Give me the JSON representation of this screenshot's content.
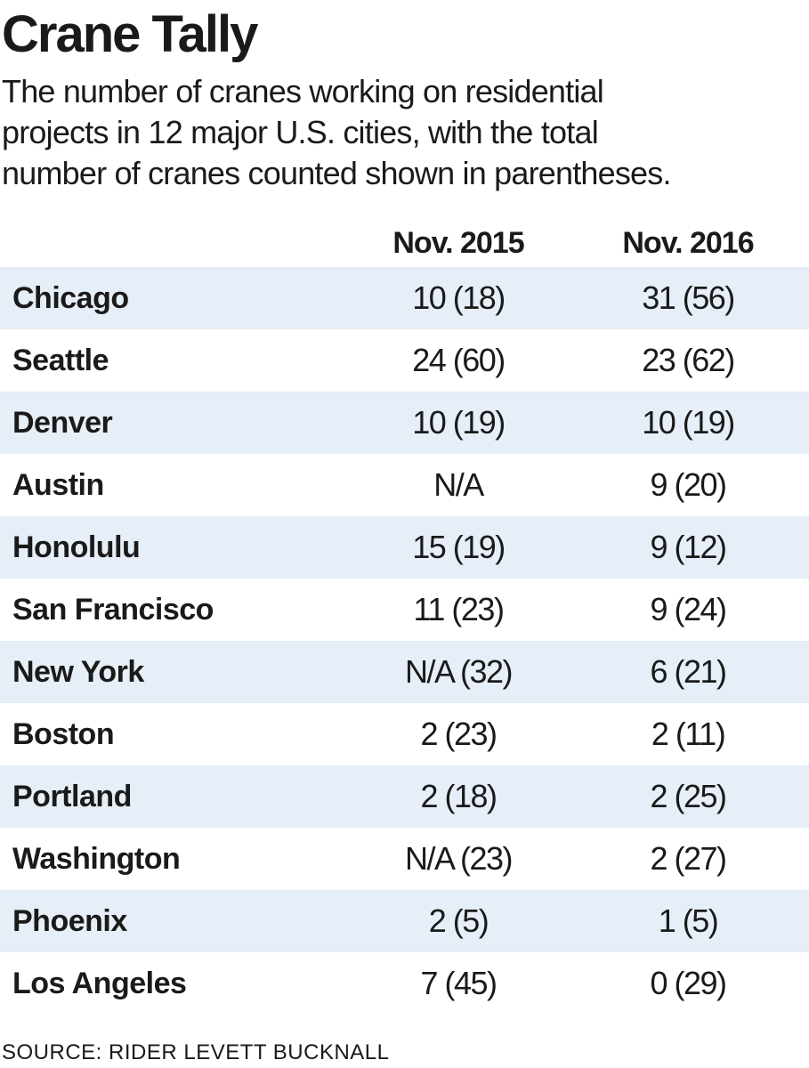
{
  "chart_data": {
    "type": "table",
    "title": "Crane Tally",
    "subtitle_lines": [
      "The number of cranes working on residential",
      "projects in 12 major U.S. cities, with the total",
      "number of cranes counted shown in parentheses."
    ],
    "columns": [
      "Nov. 2015",
      "Nov. 2016"
    ],
    "rows": [
      {
        "city": "Chicago",
        "v2015": "10 (18)",
        "v2016": "31 (56)"
      },
      {
        "city": "Seattle",
        "v2015": "24 (60)",
        "v2016": "23 (62)"
      },
      {
        "city": "Denver",
        "v2015": "10 (19)",
        "v2016": "10 (19)"
      },
      {
        "city": "Austin",
        "v2015": "N/A",
        "v2016": "9 (20)"
      },
      {
        "city": "Honolulu",
        "v2015": "15 (19)",
        "v2016": "9 (12)"
      },
      {
        "city": "San Francisco",
        "v2015": "11 (23)",
        "v2016": "9 (24)"
      },
      {
        "city": "New York",
        "v2015": "N/A (32)",
        "v2016": "6 (21)"
      },
      {
        "city": "Boston",
        "v2015": "2 (23)",
        "v2016": "2 (11)"
      },
      {
        "city": "Portland",
        "v2015": "2 (18)",
        "v2016": "2 (25)"
      },
      {
        "city": "Washington",
        "v2015": "N/A (23)",
        "v2016": "2 (27)"
      },
      {
        "city": "Phoenix",
        "v2015": "2 (5)",
        "v2016": "1 (5)"
      },
      {
        "city": "Los Angeles",
        "v2015": "7 (45)",
        "v2016": "0 (29)"
      }
    ],
    "source": "SOURCE: RIDER LEVETT BUCKNALL"
  },
  "colors": {
    "text": "#1a1a1a",
    "row_shade": "#e6eef7",
    "background": "#ffffff"
  }
}
